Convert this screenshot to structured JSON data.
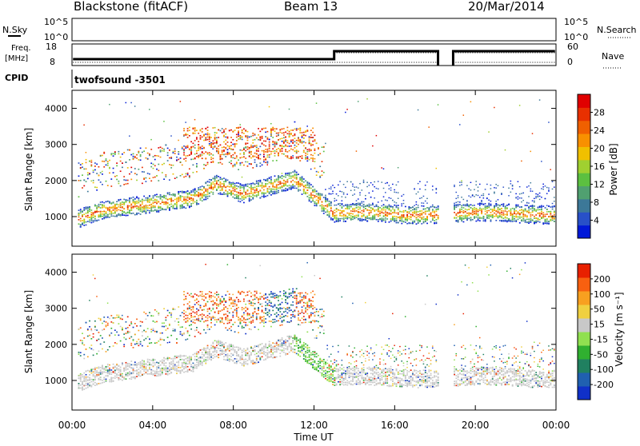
{
  "header": {
    "title": "Blackstone (fitACF)",
    "beam": "Beam 13",
    "date": "20/Mar/2014"
  },
  "noise_panel": {
    "left_label": "N.Sky",
    "right_label": "N.Search",
    "left_ticks": [
      "10^5",
      "10^0"
    ],
    "right_ticks": [
      "10^5",
      "10^0"
    ]
  },
  "freq_panel": {
    "left_label_1": "Freq.",
    "left_label_2": "[MHz]",
    "left_ticks": [
      "18",
      "8"
    ],
    "right_label": "Nave",
    "right_ticks": [
      "60",
      "0"
    ]
  },
  "cpid": {
    "label": "CPID",
    "value": "twofsound -3501"
  },
  "power_panel": {
    "ylabel": "Slant Range [km]",
    "yticks": [
      "4000",
      "3000",
      "2000",
      "1000"
    ],
    "colorbar_label": "Power [dB]",
    "colorbar_ticks": [
      "28",
      "24",
      "20",
      "16",
      "12",
      "8",
      "4"
    ],
    "colors": [
      "#0018d8",
      "#2850c8",
      "#3c7898",
      "#50a070",
      "#5cc040",
      "#a0d030",
      "#f0c000",
      "#f89000",
      "#f06000",
      "#e83000",
      "#e00000"
    ]
  },
  "velocity_panel": {
    "ylabel": "Slant Range [km]",
    "yticks": [
      "4000",
      "3000",
      "2000",
      "1000"
    ],
    "colorbar_label": "Velocity [m s⁻¹]",
    "colorbar_ticks": [
      "200",
      "100",
      "50",
      "15",
      "-15",
      "-50",
      "-100",
      "-200"
    ],
    "colors": [
      "#1030c8",
      "#2060b0",
      "#208060",
      "#30b030",
      "#90e050",
      "#c8c8c8",
      "#f0d040",
      "#f8a020",
      "#f86010",
      "#e82000"
    ]
  },
  "xaxis": {
    "label": "Time UT",
    "ticks": [
      "00:00",
      "04:00",
      "08:00",
      "12:00",
      "16:00",
      "20:00",
      "00:00"
    ]
  }
}
